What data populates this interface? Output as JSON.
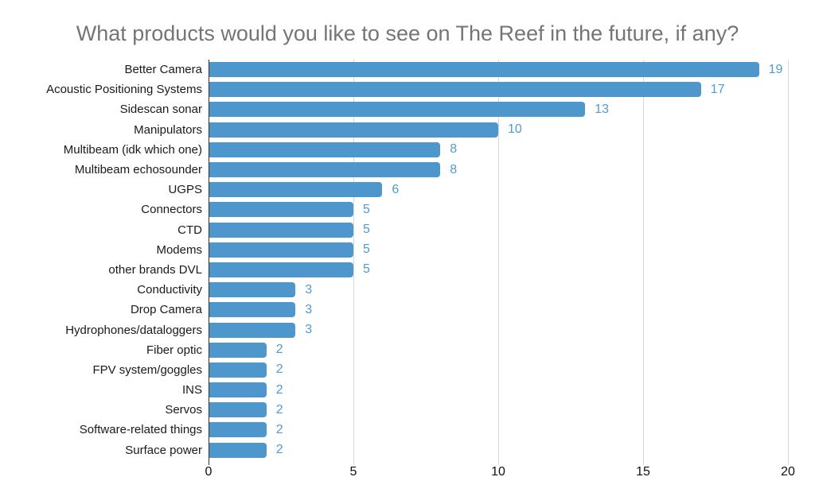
{
  "chart_data": {
    "type": "bar",
    "orientation": "horizontal",
    "title": "What products would you like to see on The Reef in the future, if any?",
    "categories": [
      "Better Camera",
      "Acoustic Positioning Systems",
      "Sidescan sonar",
      "Manipulators",
      "Multibeam (idk which one)",
      "Multibeam echosounder",
      "UGPS",
      "Connectors",
      "CTD",
      "Modems",
      "other brands DVL",
      "Conductivity",
      "Drop Camera",
      "Hydrophones/dataloggers",
      "Fiber optic",
      "FPV system/goggles",
      "INS",
      "Servos",
      "Software-related things",
      "Surface power"
    ],
    "values": [
      19,
      17,
      13,
      10,
      8,
      8,
      6,
      5,
      5,
      5,
      5,
      3,
      3,
      3,
      2,
      2,
      2,
      2,
      2,
      2
    ],
    "xlabel": "",
    "ylabel": "",
    "xlim": [
      0,
      20
    ],
    "x_ticks": [
      0,
      5,
      10,
      15,
      20
    ],
    "grid": "vertical",
    "legend": "none",
    "value_labels": "shown",
    "colors": {
      "bar": "#4d97cc",
      "value_label": "#4f9bd5",
      "title": "#757575",
      "gridline": "#d9d9d9",
      "axis_line": "#333333",
      "tick_label": "#111111",
      "category_label": "#1a1a1a"
    }
  }
}
